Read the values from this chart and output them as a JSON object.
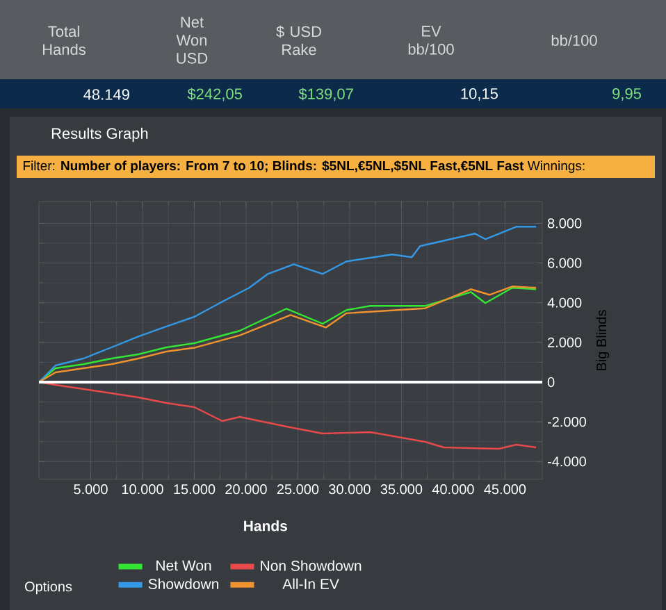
{
  "chart_data": {
    "type": "line",
    "title": "Results Graph",
    "subtitle": "Filter: **Number of players: From 7 to 10; Blinds: $5NL,€5NL,$5NL Fast,€5NL Fast** Winnings:",
    "xlabel": "Hands",
    "ylabel": "Big Blinds",
    "annotations": [
      "Total Hands",
      "Net Won USD",
      "$ USD Rake",
      "EV bb/100",
      "bb/100",
      "48.149",
      "$242,05",
      "$139,07",
      "10,15",
      "9,95",
      "Options"
    ],
    "xlim": [
      0,
      48600
    ],
    "ylim": [
      -4900,
      9100
    ],
    "xticks": [
      {
        "value": 5000,
        "label": "5.000"
      },
      {
        "value": 10000,
        "label": "10.000"
      },
      {
        "value": 15000,
        "label": "15.000"
      },
      {
        "value": 20000,
        "label": "20.000"
      },
      {
        "value": 25000,
        "label": "25.000"
      },
      {
        "value": 30000,
        "label": "30.000"
      },
      {
        "value": 35000,
        "label": "35.000"
      },
      {
        "value": 40000,
        "label": "40.000"
      },
      {
        "value": 45000,
        "label": "45.000"
      }
    ],
    "yticks": [
      {
        "value": -4000,
        "label": "-4.000"
      },
      {
        "value": -2000,
        "label": "-2.000"
      },
      0,
      {
        "value": 2000,
        "label": "2.000"
      },
      {
        "value": 4000,
        "label": "4.000"
      },
      {
        "value": 6000,
        "label": "6.000"
      },
      {
        "value": 8000,
        "label": "8.000"
      }
    ],
    "grid": true,
    "legend": "bottom",
    "marker": "none",
    "line_style": "solid",
    "ref_lines": [
      {
        "axis": "y",
        "value": 0,
        "color": "#ffffff"
      }
    ],
    "series": [
      {
        "name": "Net Won",
        "color": "#33e633",
        "x": [
          0,
          1600,
          4300,
          7000,
          9600,
          12300,
          15000,
          19400,
          23900,
          27400,
          29700,
          32000,
          37300,
          41700,
          43100,
          45700,
          48000
        ],
        "values": [
          0,
          700,
          900,
          1190,
          1400,
          1750,
          1960,
          2590,
          3700,
          2940,
          3630,
          3840,
          3840,
          4540,
          3980,
          4750,
          4680
        ]
      },
      {
        "name": "Non Showdown",
        "color": "#e84a4a",
        "x": [
          0,
          1600,
          4300,
          7000,
          9600,
          12300,
          15000,
          17700,
          19400,
          23900,
          27400,
          32000,
          37300,
          39100,
          44400,
          46100,
          48000
        ],
        "values": [
          0,
          -140,
          -350,
          -560,
          -770,
          -1050,
          -1260,
          -1960,
          -1750,
          -2240,
          -2590,
          -2520,
          -3010,
          -3290,
          -3360,
          -3150,
          -3290
        ]
      },
      {
        "name": "Showdown",
        "color": "#3399e6",
        "x": [
          0,
          1600,
          4300,
          7000,
          9600,
          12300,
          15000,
          17700,
          20300,
          22100,
          24600,
          27400,
          29700,
          34100,
          36000,
          36800,
          42100,
          43100,
          46100,
          48000
        ],
        "values": [
          0,
          840,
          1190,
          1750,
          2300,
          2800,
          3290,
          4050,
          4750,
          5450,
          5940,
          5450,
          6080,
          6430,
          6290,
          6850,
          7480,
          7200,
          7830,
          7830
        ]
      },
      {
        "name": "All-In EV",
        "color": "#f0922e",
        "x": [
          0,
          1600,
          4300,
          7000,
          9600,
          12300,
          15000,
          19400,
          24300,
          27700,
          29700,
          37300,
          41700,
          43500,
          45700,
          48000
        ],
        "values": [
          0,
          490,
          700,
          900,
          1190,
          1540,
          1730,
          2360,
          3380,
          2750,
          3470,
          3720,
          4680,
          4400,
          4820,
          4750
        ]
      }
    ]
  }
}
